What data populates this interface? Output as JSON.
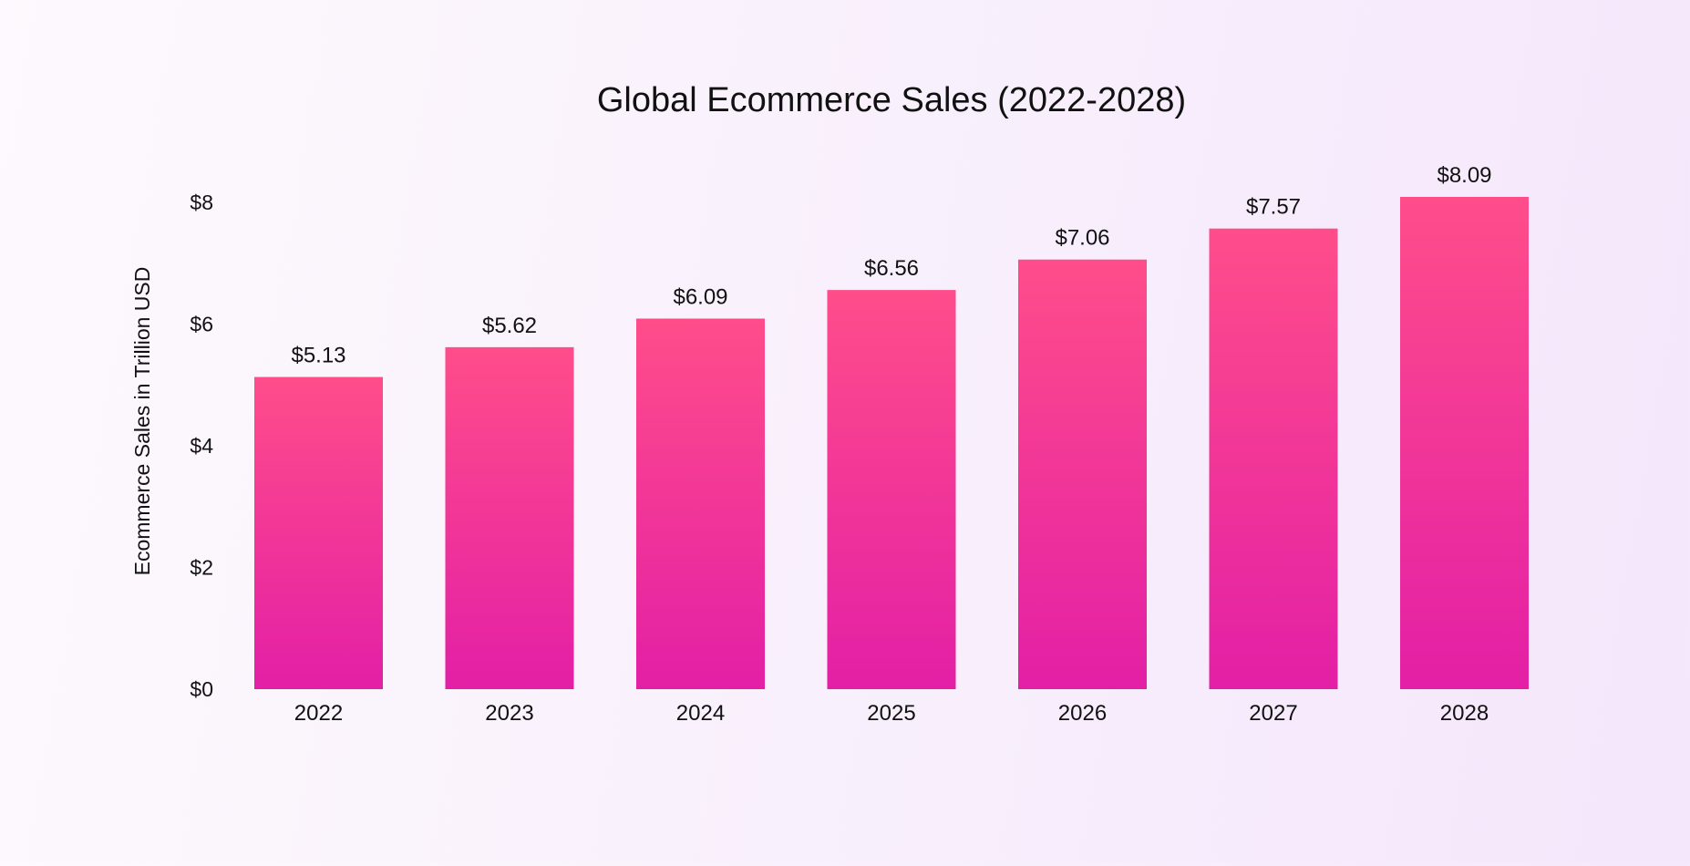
{
  "chart_data": {
    "type": "bar",
    "title": "Global Ecommerce Sales (2022-2028)",
    "xlabel": "",
    "ylabel": "Ecommerce Sales in Trillion USD",
    "categories": [
      "2022",
      "2023",
      "2024",
      "2025",
      "2026",
      "2027",
      "2028"
    ],
    "values": [
      5.13,
      5.62,
      6.09,
      6.56,
      7.06,
      7.57,
      8.09
    ],
    "value_labels": [
      "$5.13",
      "$5.62",
      "$6.09",
      "$6.56",
      "$7.06",
      "$7.57",
      "$8.09"
    ],
    "yticks": [
      0,
      2,
      4,
      6,
      8
    ],
    "ytick_labels": [
      "$0",
      "$2",
      "$4",
      "$6",
      "$8"
    ],
    "ylim": [
      0,
      8
    ],
    "grid": false,
    "legend": "none",
    "colors": {
      "bar_top": "#ff4d8a",
      "bar_bottom": "#e31fa6",
      "text": "#111111"
    }
  }
}
